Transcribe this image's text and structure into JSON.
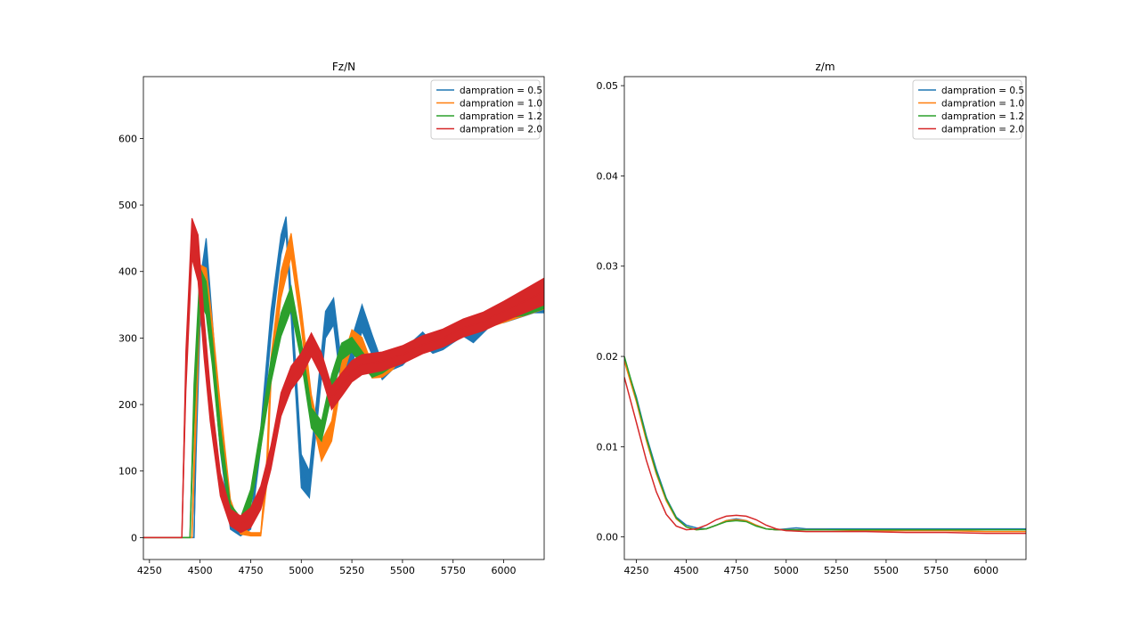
{
  "chart_data": [
    {
      "type": "line",
      "title": "Fz/N",
      "xlabel": "",
      "ylabel": "",
      "xlim": [
        4220,
        6200
      ],
      "ylim": [
        -33,
        693
      ],
      "xticks": [
        4250,
        4500,
        4750,
        5000,
        5250,
        5500,
        5750,
        6000
      ],
      "yticks": [
        0,
        100,
        200,
        300,
        400,
        500,
        600
      ],
      "legend_position": "upper-right",
      "series": [
        {
          "name": "dampration = 0.5",
          "color": "#1f77b4",
          "x": [
            4220,
            4470,
            4480,
            4500,
            4530,
            4560,
            4600,
            4650,
            4700,
            4750,
            4800,
            4850,
            4900,
            4925,
            4960,
            5000,
            5040,
            5080,
            5120,
            5160,
            5200,
            5260,
            5300,
            5350,
            5400,
            5450,
            5500,
            5550,
            5600,
            5650,
            5700,
            5750,
            5800,
            5850,
            5900,
            5950,
            6000,
            6050,
            6100,
            6150,
            6200
          ],
          "y": [
            0,
            0,
            150,
            350,
            420,
            300,
            150,
            20,
            10,
            20,
            150,
            320,
            440,
            470,
            300,
            100,
            80,
            200,
            320,
            340,
            240,
            290,
            330,
            290,
            250,
            265,
            270,
            285,
            300,
            285,
            290,
            300,
            310,
            300,
            315,
            330,
            330,
            335,
            340,
            345,
            345
          ],
          "band": [
            0,
            0,
            60,
            70,
            60,
            60,
            40,
            15,
            15,
            15,
            30,
            40,
            30,
            25,
            40,
            50,
            40,
            40,
            40,
            40,
            40,
            40,
            40,
            30,
            25,
            25,
            22,
            20,
            18,
            16,
            15,
            14,
            14,
            14,
            14,
            14,
            14,
            14,
            14,
            14,
            14
          ]
        },
        {
          "name": "dampration = 1.0",
          "color": "#ff7f0e",
          "x": [
            4220,
            4460,
            4480,
            4500,
            4530,
            4560,
            4600,
            4650,
            4700,
            4750,
            4800,
            4830,
            4850,
            4900,
            4950,
            5000,
            5050,
            5100,
            5150,
            5200,
            5250,
            5300,
            5350,
            5400,
            5450,
            5500,
            5600,
            5700,
            5800,
            5900,
            6000,
            6100,
            6200
          ],
          "y": [
            0,
            0,
            200,
            380,
            380,
            300,
            180,
            50,
            10,
            5,
            5,
            100,
            250,
            380,
            440,
            330,
            200,
            130,
            160,
            250,
            300,
            290,
            250,
            250,
            260,
            280,
            290,
            300,
            310,
            320,
            330,
            340,
            350
          ],
          "band": [
            0,
            0,
            60,
            60,
            50,
            50,
            40,
            15,
            10,
            5,
            5,
            40,
            40,
            40,
            35,
            30,
            30,
            30,
            30,
            25,
            25,
            22,
            20,
            18,
            16,
            15,
            14,
            13,
            13,
            13,
            13,
            13,
            13
          ]
        },
        {
          "name": "dampration = 1.2",
          "color": "#2ca02c",
          "x": [
            4220,
            4450,
            4470,
            4500,
            4530,
            4560,
            4600,
            4650,
            4700,
            4750,
            4800,
            4850,
            4900,
            4950,
            5000,
            5050,
            5100,
            5150,
            5200,
            5250,
            5300,
            5350,
            5400,
            5450,
            5500,
            5600,
            5700,
            5800,
            5900,
            6000,
            6100,
            6200
          ],
          "y": [
            0,
            0,
            200,
            380,
            360,
            280,
            150,
            40,
            20,
            60,
            150,
            250,
            320,
            360,
            280,
            180,
            160,
            230,
            280,
            290,
            270,
            250,
            255,
            265,
            280,
            290,
            305,
            315,
            325,
            335,
            340,
            350
          ],
          "band": [
            0,
            0,
            60,
            50,
            50,
            40,
            35,
            20,
            20,
            25,
            30,
            35,
            35,
            35,
            30,
            30,
            30,
            30,
            25,
            22,
            20,
            18,
            16,
            15,
            14,
            13,
            12,
            12,
            12,
            12,
            12,
            12
          ]
        },
        {
          "name": "dampration = 2.0",
          "color": "#d62728",
          "x": [
            4220,
            4410,
            4430,
            4460,
            4490,
            4520,
            4550,
            4600,
            4650,
            4700,
            4750,
            4800,
            4850,
            4900,
            4950,
            5000,
            5050,
            5100,
            5150,
            5200,
            5250,
            5300,
            5400,
            5500,
            5600,
            5700,
            5800,
            5900,
            6000,
            6100,
            6200
          ],
          "y": [
            0,
            0,
            250,
            450,
            420,
            300,
            200,
            80,
            30,
            20,
            30,
            60,
            120,
            200,
            240,
            260,
            290,
            260,
            210,
            230,
            250,
            260,
            265,
            275,
            290,
            300,
            315,
            325,
            340,
            355,
            370
          ],
          "band": [
            0,
            0,
            60,
            60,
            70,
            60,
            50,
            35,
            25,
            25,
            30,
            35,
            35,
            35,
            35,
            35,
            35,
            35,
            35,
            35,
            32,
            30,
            28,
            27,
            27,
            27,
            27,
            28,
            30,
            35,
            40
          ]
        }
      ]
    },
    {
      "type": "line",
      "title": "z/m",
      "xlabel": "",
      "ylabel": "",
      "xlim": [
        4190,
        6200
      ],
      "ylim": [
        -0.0025,
        0.051
      ],
      "xticks": [
        4250,
        4500,
        4750,
        5000,
        5250,
        5500,
        5750,
        6000
      ],
      "yticks": [
        0.0,
        0.01,
        0.02,
        0.03,
        0.04,
        0.05
      ],
      "ytick_labels": [
        "0.00",
        "0.01",
        "0.02",
        "0.03",
        "0.04",
        "0.05"
      ],
      "legend_position": "upper-right",
      "series": [
        {
          "name": "dampration = 0.5",
          "color": "#1f77b4",
          "x": [
            4190,
            4250,
            4300,
            4350,
            4400,
            4450,
            4500,
            4550,
            4600,
            4650,
            4700,
            4750,
            4800,
            4850,
            4900,
            4950,
            5000,
            5050,
            5100,
            5200,
            5400,
            5600,
            5800,
            6000,
            6200
          ],
          "y": [
            0.0197,
            0.0155,
            0.0112,
            0.0075,
            0.0043,
            0.0022,
            0.0013,
            0.001,
            0.0009,
            0.0013,
            0.0018,
            0.002,
            0.0018,
            0.0013,
            0.0009,
            0.0008,
            0.0009,
            0.001,
            0.0009,
            0.0009,
            0.0009,
            0.0009,
            0.0009,
            0.0009,
            0.0009
          ]
        },
        {
          "name": "dampration = 1.0",
          "color": "#ff7f0e",
          "x": [
            4190,
            4250,
            4300,
            4350,
            4400,
            4450,
            4500,
            4550,
            4600,
            4650,
            4700,
            4750,
            4800,
            4850,
            4900,
            4950,
            5000,
            5100,
            5200,
            5400,
            5600,
            5800,
            6000,
            6200
          ],
          "y": [
            0.0195,
            0.015,
            0.0107,
            0.007,
            0.004,
            0.002,
            0.0011,
            0.0008,
            0.0009,
            0.0013,
            0.0018,
            0.0019,
            0.0018,
            0.0013,
            0.0009,
            0.0008,
            0.0008,
            0.0008,
            0.0008,
            0.0007,
            0.0007,
            0.0007,
            0.0006,
            0.0006
          ]
        },
        {
          "name": "dampration = 1.2",
          "color": "#2ca02c",
          "x": [
            4190,
            4250,
            4300,
            4350,
            4400,
            4450,
            4500,
            4550,
            4600,
            4650,
            4700,
            4750,
            4800,
            4850,
            4900,
            4950,
            5000,
            5100,
            5200,
            5400,
            5600,
            5800,
            6000,
            6200
          ],
          "y": [
            0.02,
            0.0153,
            0.011,
            0.0072,
            0.0042,
            0.0021,
            0.0011,
            0.0008,
            0.0009,
            0.0013,
            0.0017,
            0.0018,
            0.0017,
            0.0012,
            0.0009,
            0.0008,
            0.0008,
            0.0008,
            0.0008,
            0.0008,
            0.0008,
            0.0008,
            0.0008,
            0.0008
          ]
        },
        {
          "name": "dampration = 2.0",
          "color": "#d62728",
          "x": [
            4190,
            4250,
            4300,
            4350,
            4400,
            4450,
            4500,
            4550,
            4600,
            4650,
            4700,
            4750,
            4800,
            4850,
            4900,
            4950,
            5000,
            5100,
            5200,
            5400,
            5600,
            5800,
            6000,
            6200
          ],
          "y": [
            0.0177,
            0.0127,
            0.0085,
            0.005,
            0.0025,
            0.0012,
            0.0008,
            0.0009,
            0.0013,
            0.0019,
            0.0023,
            0.0024,
            0.0023,
            0.0019,
            0.0013,
            0.0009,
            0.0007,
            0.0006,
            0.0006,
            0.0006,
            0.0005,
            0.0005,
            0.0004,
            0.0004
          ]
        }
      ]
    }
  ]
}
